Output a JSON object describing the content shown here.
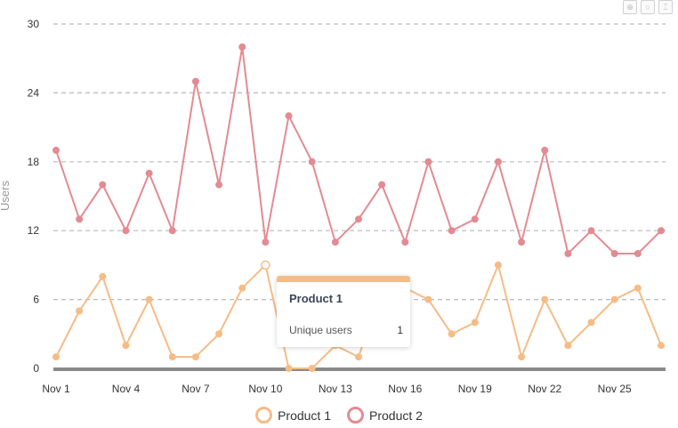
{
  "chart_data": {
    "type": "line",
    "ylabel": "Users",
    "ylim": [
      0,
      30
    ],
    "yticks": [
      0,
      6,
      12,
      18,
      24,
      30
    ],
    "x": [
      "Nov 1",
      "Nov 2",
      "Nov 3",
      "Nov 4",
      "Nov 5",
      "Nov 6",
      "Nov 7",
      "Nov 8",
      "Nov 9",
      "Nov 10",
      "Nov 11",
      "Nov 12",
      "Nov 13",
      "Nov 14",
      "Nov 15",
      "Nov 16",
      "Nov 17",
      "Nov 18",
      "Nov 19",
      "Nov 20",
      "Nov 21",
      "Nov 22",
      "Nov 23",
      "Nov 24",
      "Nov 25",
      "Nov 26",
      "Nov 27"
    ],
    "xtick_labels": [
      "Nov 1",
      "Nov 4",
      "Nov 7",
      "Nov 10",
      "Nov 13",
      "Nov 16",
      "Nov 19",
      "Nov 22",
      "Nov 25"
    ],
    "grid": true,
    "legend_position": "bottom-center",
    "series": [
      {
        "name": "Product 1",
        "color": "#f5bc86",
        "values": [
          1,
          5,
          8,
          2,
          6,
          1,
          1,
          3,
          7,
          9,
          0,
          0,
          2,
          1,
          7,
          7,
          6,
          3,
          4,
          9,
          1,
          6,
          2,
          4,
          6,
          7,
          2
        ]
      },
      {
        "name": "Product 2",
        "color": "#e28b92",
        "values": [
          19,
          13,
          16,
          12,
          17,
          12,
          25,
          16,
          28,
          11,
          22,
          18,
          11,
          13,
          16,
          11,
          18,
          12,
          13,
          18,
          11,
          19,
          10,
          12,
          10,
          10,
          12
        ]
      }
    ]
  },
  "tooltip": {
    "title": "Product 1",
    "label": "Unique users",
    "value": "1",
    "color": "#f5bc86"
  },
  "toolbar": {
    "icons": [
      "zoom-in-icon",
      "reset-icon",
      "pin-icon"
    ]
  }
}
